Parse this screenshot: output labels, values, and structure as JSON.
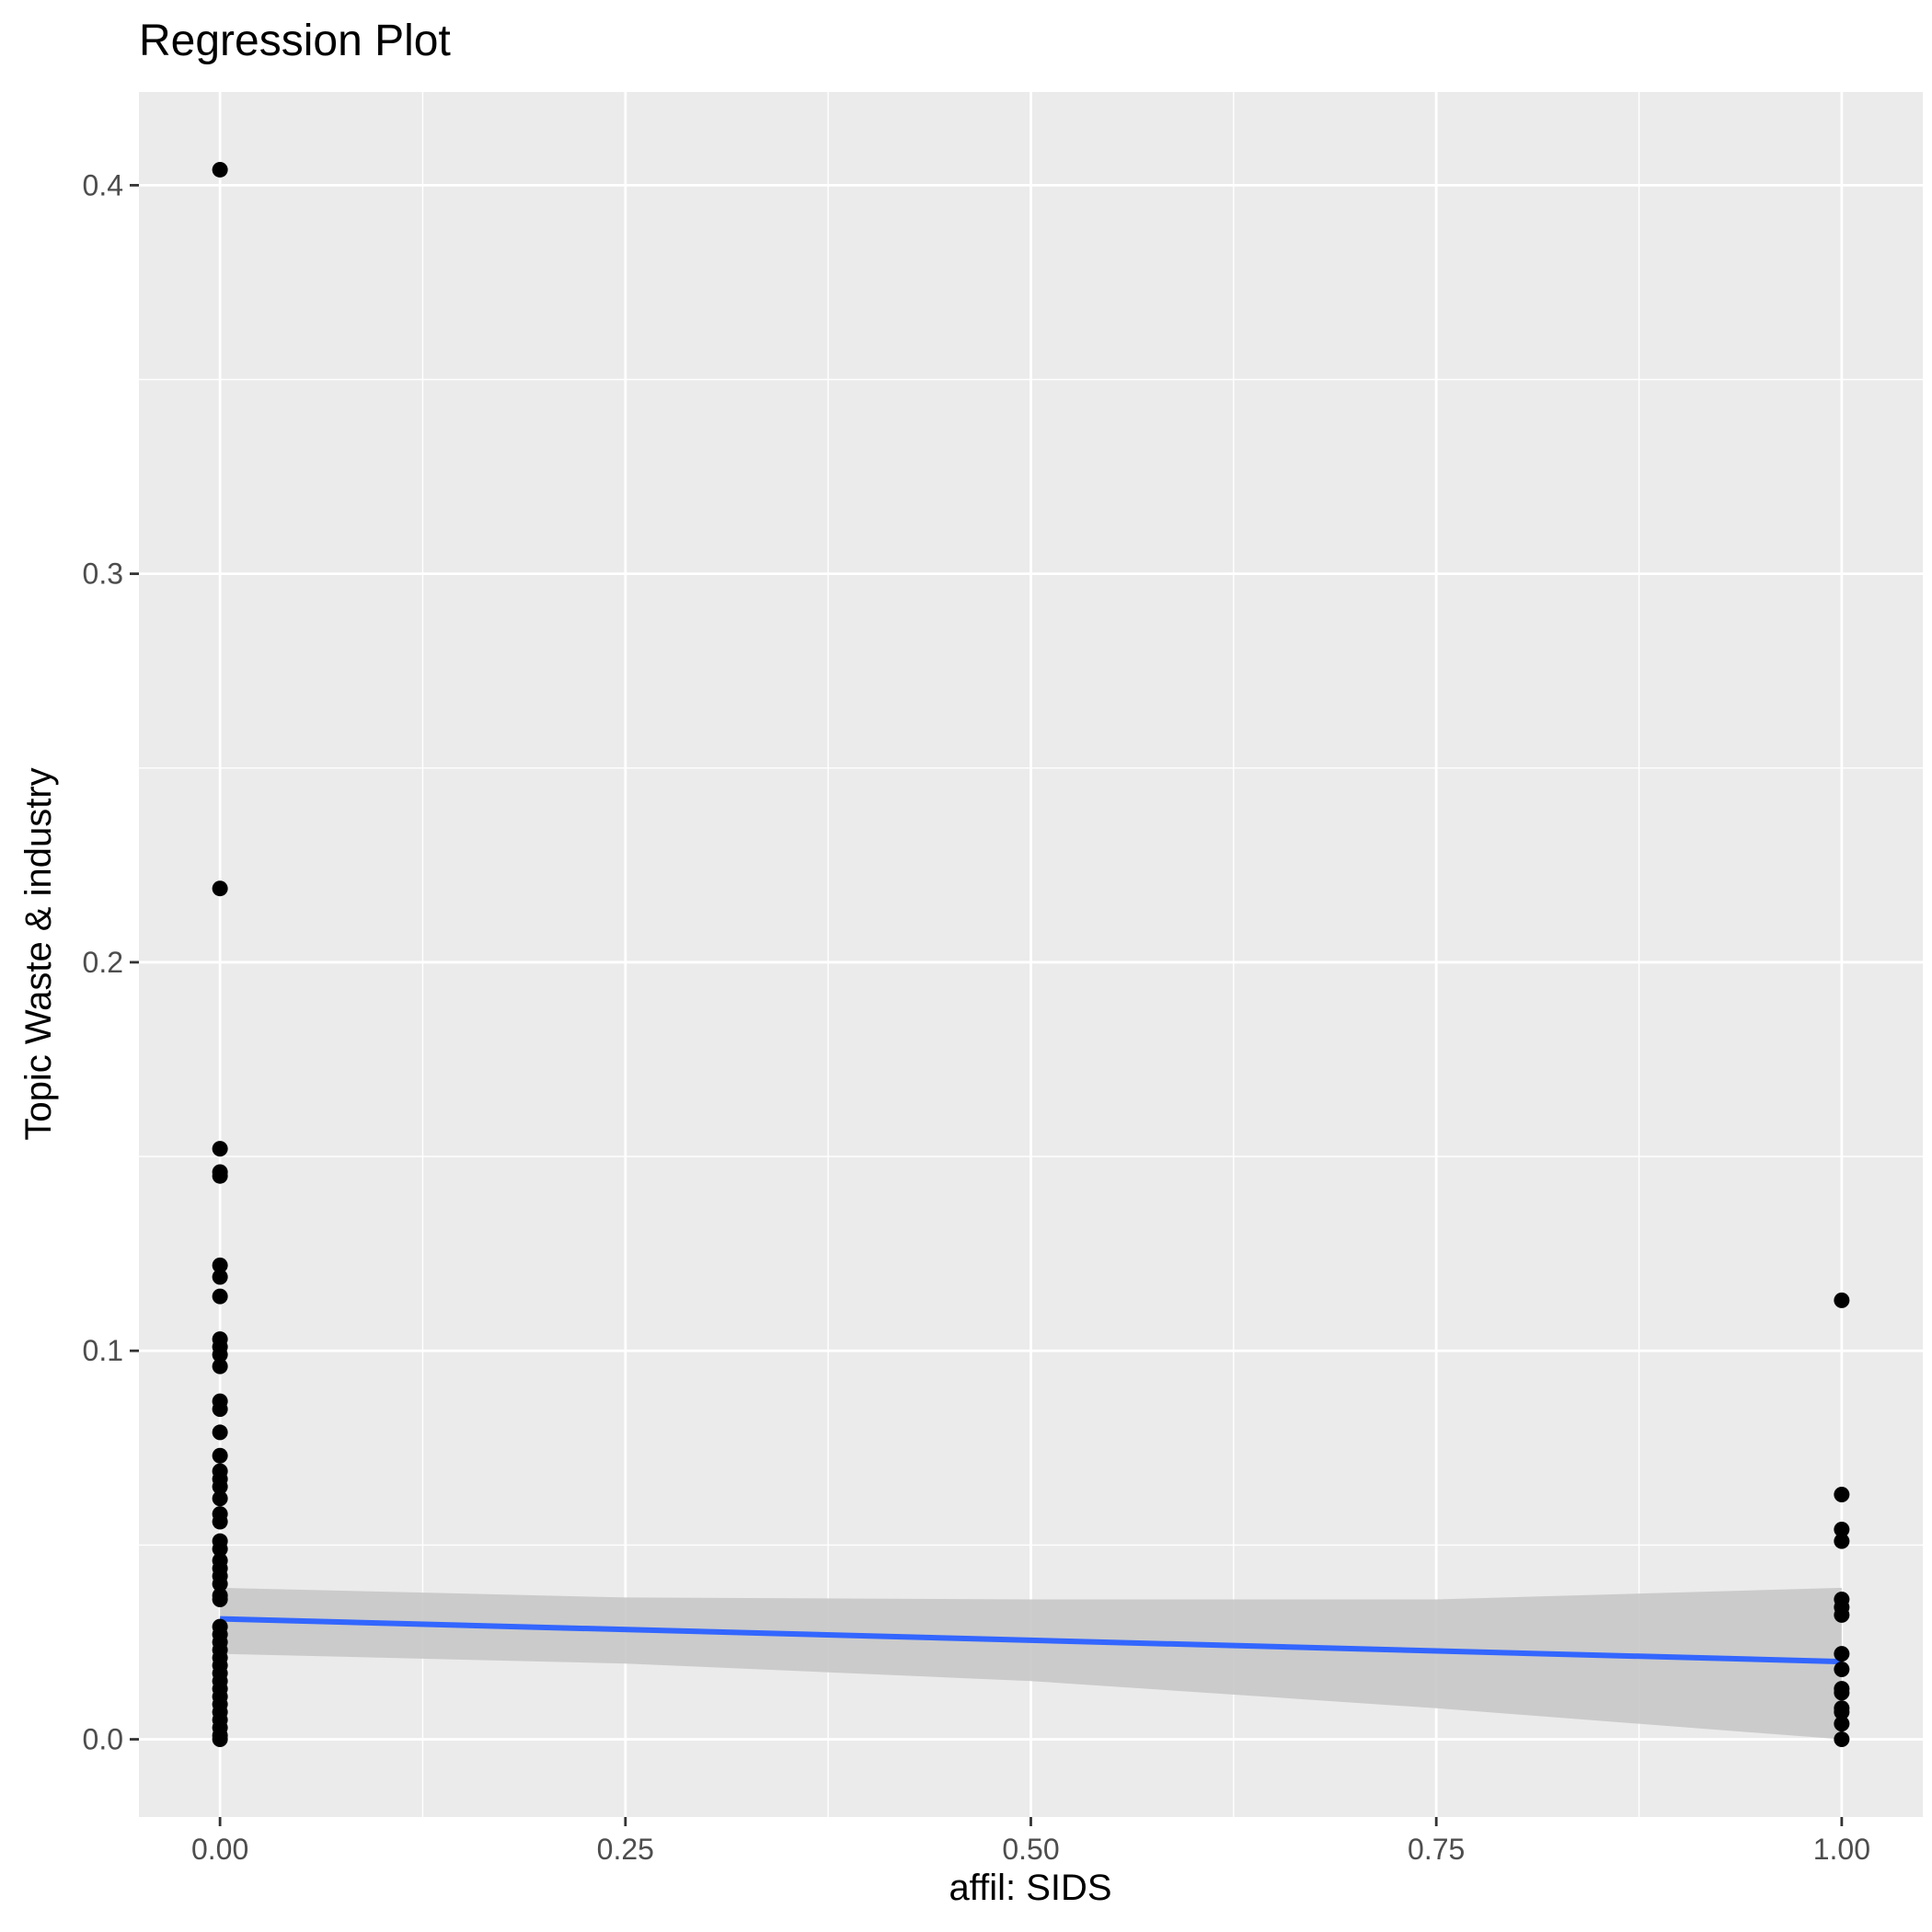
{
  "chart_data": {
    "type": "scatter",
    "title": "Regression Plot",
    "xlabel": "affil: SIDS",
    "ylabel": "Topic Waste & industry",
    "xlim": [
      -0.05,
      1.05
    ],
    "ylim": [
      -0.02,
      0.424
    ],
    "x_ticks": [
      0.0,
      0.25,
      0.5,
      0.75,
      1.0
    ],
    "x_tick_labels": [
      "0.00",
      "0.25",
      "0.50",
      "0.75",
      "1.00"
    ],
    "y_ticks": [
      0.0,
      0.1,
      0.2,
      0.3,
      0.4
    ],
    "y_tick_labels": [
      "0.0",
      "0.1",
      "0.2",
      "0.3",
      "0.4"
    ],
    "grid": true,
    "legend": "none",
    "colors": {
      "panel_background": "#ebebeb",
      "grid": "#ffffff",
      "points": "#000000",
      "regression_line": "#3366ff",
      "confidence_band": "#c8c8c8",
      "tick_text": "#4d4d4d"
    },
    "series": [
      {
        "type": "scatter",
        "points": [
          {
            "x": 0,
            "y": 0.404
          },
          {
            "x": 0,
            "y": 0.219
          },
          {
            "x": 0,
            "y": 0.152
          },
          {
            "x": 0,
            "y": 0.146
          },
          {
            "x": 0,
            "y": 0.145
          },
          {
            "x": 0,
            "y": 0.122
          },
          {
            "x": 0,
            "y": 0.119
          },
          {
            "x": 0,
            "y": 0.114
          },
          {
            "x": 0,
            "y": 0.103
          },
          {
            "x": 0,
            "y": 0.101
          },
          {
            "x": 0,
            "y": 0.099
          },
          {
            "x": 0,
            "y": 0.096
          },
          {
            "x": 0,
            "y": 0.087
          },
          {
            "x": 0,
            "y": 0.085
          },
          {
            "x": 0,
            "y": 0.079
          },
          {
            "x": 0,
            "y": 0.073
          },
          {
            "x": 0,
            "y": 0.069
          },
          {
            "x": 0,
            "y": 0.067
          },
          {
            "x": 0,
            "y": 0.065
          },
          {
            "x": 0,
            "y": 0.062
          },
          {
            "x": 0,
            "y": 0.058
          },
          {
            "x": 0,
            "y": 0.056
          },
          {
            "x": 0,
            "y": 0.051
          },
          {
            "x": 0,
            "y": 0.049
          },
          {
            "x": 0,
            "y": 0.046
          },
          {
            "x": 0,
            "y": 0.044
          },
          {
            "x": 0,
            "y": 0.042
          },
          {
            "x": 0,
            "y": 0.04
          },
          {
            "x": 0,
            "y": 0.037
          },
          {
            "x": 0,
            "y": 0.036
          },
          {
            "x": 0,
            "y": 0.029
          },
          {
            "x": 0,
            "y": 0.027
          },
          {
            "x": 0,
            "y": 0.025
          },
          {
            "x": 0,
            "y": 0.023
          },
          {
            "x": 0,
            "y": 0.021
          },
          {
            "x": 0,
            "y": 0.019
          },
          {
            "x": 0,
            "y": 0.017
          },
          {
            "x": 0,
            "y": 0.015
          },
          {
            "x": 0,
            "y": 0.013
          },
          {
            "x": 0,
            "y": 0.011
          },
          {
            "x": 0,
            "y": 0.009
          },
          {
            "x": 0,
            "y": 0.007
          },
          {
            "x": 0,
            "y": 0.005
          },
          {
            "x": 0,
            "y": 0.003
          },
          {
            "x": 0,
            "y": 0.001
          },
          {
            "x": 0,
            "y": 0.0
          },
          {
            "x": 1,
            "y": 0.113
          },
          {
            "x": 1,
            "y": 0.063
          },
          {
            "x": 1,
            "y": 0.054
          },
          {
            "x": 1,
            "y": 0.051
          },
          {
            "x": 1,
            "y": 0.036
          },
          {
            "x": 1,
            "y": 0.034
          },
          {
            "x": 1,
            "y": 0.032
          },
          {
            "x": 1,
            "y": 0.022
          },
          {
            "x": 1,
            "y": 0.018
          },
          {
            "x": 1,
            "y": 0.013
          },
          {
            "x": 1,
            "y": 0.012
          },
          {
            "x": 1,
            "y": 0.008
          },
          {
            "x": 1,
            "y": 0.007
          },
          {
            "x": 1,
            "y": 0.004
          },
          {
            "x": 1,
            "y": 0.0
          }
        ]
      },
      {
        "type": "line",
        "method": "linear regression",
        "x": [
          0,
          1
        ],
        "y": [
          0.031,
          0.02
        ]
      },
      {
        "type": "area",
        "description_of": "confidence band",
        "x": [
          0,
          0.25,
          0.5,
          0.75,
          1.0
        ],
        "upper": [
          0.039,
          0.0365,
          0.036,
          0.036,
          0.039
        ],
        "lower": [
          0.022,
          0.0195,
          0.015,
          0.008,
          0.0
        ]
      }
    ]
  }
}
